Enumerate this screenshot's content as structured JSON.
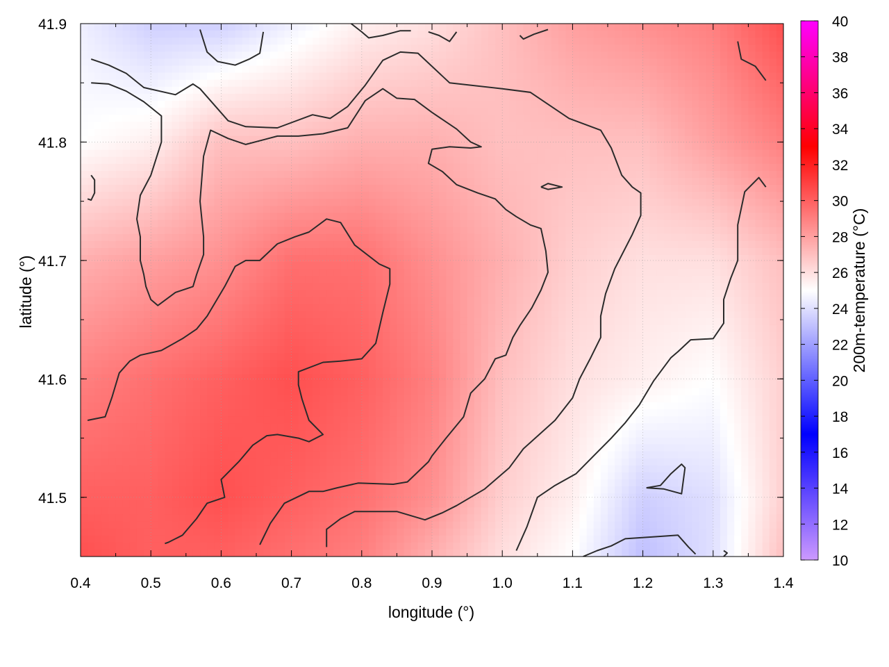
{
  "chart_data": {
    "type": "heatmap",
    "title": "",
    "xlabel": "longitude (°)",
    "ylabel": "latitude (°)",
    "colorbar_label": "200m-temperature (°C)",
    "xlim": [
      0.4,
      1.4
    ],
    "ylim": [
      41.45,
      41.9
    ],
    "x_ticks": [
      0.4,
      0.5,
      0.6,
      0.7,
      0.8,
      0.9,
      1.0,
      1.1,
      1.2,
      1.3,
      1.4
    ],
    "x_tick_labels": [
      "0.4",
      "0.5",
      "0.6",
      "0.7",
      "0.8",
      "0.9",
      "1.0",
      "1.1",
      "1.2",
      "1.3",
      "1.4"
    ],
    "y_ticks": [
      41.5,
      41.6,
      41.7,
      41.8,
      41.9
    ],
    "y_tick_labels": [
      "41.5",
      "41.6",
      "41.7",
      "41.8",
      "41.9"
    ],
    "colorbar_range": [
      10,
      40
    ],
    "colorbar_ticks": [
      10,
      12,
      14,
      16,
      18,
      20,
      22,
      24,
      26,
      28,
      30,
      32,
      34,
      36,
      38,
      40
    ],
    "colorbar_tick_labels": [
      "10",
      "12",
      "14",
      "16",
      "18",
      "20",
      "22",
      "24",
      "26",
      "28",
      "30",
      "32",
      "34",
      "36",
      "38",
      "40"
    ],
    "colormap": [
      {
        "value": 10,
        "color": "#cc99ff"
      },
      {
        "value": 17,
        "color": "#0000ff"
      },
      {
        "value": 25,
        "color": "#ffffff"
      },
      {
        "value": 33,
        "color": "#ff0000"
      },
      {
        "value": 40,
        "color": "#ff00ff"
      }
    ],
    "grid": true,
    "field_samples": [
      [
        41.9,
        [
          24.5,
          23.5,
          23.5,
          24.5,
          25.5,
          26,
          27,
          28,
          28.5,
          29,
          30.5
        ]
      ],
      [
        41.8,
        [
          25,
          25.5,
          27,
          27,
          27.5,
          27.5,
          27,
          27,
          27,
          28,
          29
        ]
      ],
      [
        41.7,
        [
          27.5,
          28,
          28.5,
          29.5,
          29.5,
          28.5,
          27.5,
          26.5,
          26,
          26,
          27
        ]
      ],
      [
        41.6,
        [
          29,
          29.5,
          30,
          30.5,
          30,
          29,
          27,
          26,
          25.5,
          25,
          26.5
        ]
      ],
      [
        41.5,
        [
          30,
          30,
          30.5,
          30,
          29.5,
          28.5,
          26.5,
          25.5,
          23.5,
          24,
          26.5
        ]
      ],
      [
        41.45,
        [
          30.5,
          30,
          30,
          29.5,
          29,
          27.5,
          26,
          25,
          23,
          24,
          27
        ]
      ]
    ],
    "contour_lines": [
      [
        [
          0.415,
          41.87
        ],
        [
          0.44,
          41.865
        ],
        [
          0.465,
          41.858
        ],
        [
          0.49,
          41.846
        ],
        [
          0.535,
          41.84
        ],
        [
          0.56,
          41.849
        ],
        [
          0.57,
          41.845
        ],
        [
          0.61,
          41.818
        ],
        [
          0.635,
          41.813
        ],
        [
          0.68,
          41.812
        ],
        [
          0.73,
          41.823
        ],
        [
          0.755,
          41.82
        ],
        [
          0.78,
          41.83
        ],
        [
          0.805,
          41.848
        ],
        [
          0.83,
          41.869
        ],
        [
          0.855,
          41.876
        ],
        [
          0.88,
          41.875
        ],
        [
          0.925,
          41.85
        ],
        [
          1.0,
          41.845
        ],
        [
          1.04,
          41.842
        ],
        [
          1.095,
          41.82
        ],
        [
          1.14,
          41.81
        ],
        [
          1.155,
          41.795
        ],
        [
          1.17,
          41.772
        ],
        [
          1.185,
          41.762
        ],
        [
          1.197,
          41.757
        ],
        [
          1.197,
          41.738
        ],
        [
          1.185,
          41.722
        ],
        [
          1.16,
          41.693
        ],
        [
          1.147,
          41.672
        ],
        [
          1.14,
          41.653
        ],
        [
          1.14,
          41.635
        ],
        [
          1.125,
          41.617
        ],
        [
          1.11,
          41.6
        ],
        [
          1.1,
          41.584
        ],
        [
          1.075,
          41.565
        ],
        [
          1.03,
          41.541
        ],
        [
          1.01,
          41.525
        ],
        [
          0.975,
          41.507
        ],
        [
          0.935,
          41.493
        ],
        [
          0.915,
          41.487
        ],
        [
          0.89,
          41.481
        ],
        [
          0.85,
          41.488
        ],
        [
          0.79,
          41.488
        ],
        [
          0.77,
          41.482
        ],
        [
          0.75,
          41.473
        ],
        [
          0.75,
          41.458
        ]
      ],
      [
        [
          0.415,
          41.85
        ],
        [
          0.44,
          41.849
        ],
        [
          0.465,
          41.843
        ],
        [
          0.49,
          41.834
        ],
        [
          0.515,
          41.822
        ],
        [
          0.515,
          41.8
        ],
        [
          0.5,
          41.772
        ],
        [
          0.485,
          41.755
        ],
        [
          0.48,
          41.735
        ],
        [
          0.485,
          41.72
        ],
        [
          0.485,
          41.7
        ],
        [
          0.49,
          41.688
        ],
        [
          0.493,
          41.678
        ],
        [
          0.5,
          41.667
        ],
        [
          0.51,
          41.662
        ],
        [
          0.535,
          41.673
        ],
        [
          0.56,
          41.678
        ],
        [
          0.565,
          41.688
        ],
        [
          0.575,
          41.705
        ],
        [
          0.575,
          41.72
        ],
        [
          0.57,
          41.75
        ],
        [
          0.575,
          41.788
        ],
        [
          0.585,
          41.81
        ],
        [
          0.61,
          41.803
        ],
        [
          0.635,
          41.798
        ],
        [
          0.68,
          41.805
        ],
        [
          0.71,
          41.805
        ],
        [
          0.745,
          41.807
        ],
        [
          0.78,
          41.812
        ],
        [
          0.805,
          41.835
        ],
        [
          0.83,
          41.845
        ],
        [
          0.85,
          41.837
        ],
        [
          0.875,
          41.836
        ],
        [
          0.9,
          41.825
        ],
        [
          0.935,
          41.811
        ],
        [
          0.955,
          41.8
        ],
        [
          0.97,
          41.796
        ],
        [
          0.955,
          41.795
        ],
        [
          0.925,
          41.796
        ],
        [
          0.9,
          41.794
        ],
        [
          0.895,
          41.782
        ],
        [
          0.915,
          41.775
        ],
        [
          0.935,
          41.764
        ],
        [
          0.965,
          41.757
        ],
        [
          0.99,
          41.752
        ],
        [
          1.005,
          41.743
        ],
        [
          1.02,
          41.737
        ],
        [
          1.04,
          41.73
        ],
        [
          1.055,
          41.727
        ],
        [
          1.062,
          41.708
        ],
        [
          1.065,
          41.69
        ],
        [
          1.055,
          41.675
        ],
        [
          1.042,
          41.66
        ],
        [
          1.025,
          41.645
        ],
        [
          1.015,
          41.635
        ],
        [
          1.005,
          41.62
        ],
        [
          0.99,
          41.617
        ],
        [
          0.975,
          41.6
        ],
        [
          0.955,
          41.588
        ],
        [
          0.945,
          41.568
        ],
        [
          0.92,
          41.55
        ],
        [
          0.9,
          41.535
        ],
        [
          0.895,
          41.53
        ],
        [
          0.865,
          41.513
        ],
        [
          0.845,
          41.511
        ],
        [
          0.795,
          41.512
        ],
        [
          0.765,
          41.508
        ],
        [
          0.745,
          41.505
        ],
        [
          0.725,
          41.505
        ],
        [
          0.69,
          41.495
        ],
        [
          0.67,
          41.478
        ],
        [
          0.655,
          41.46
        ]
      ],
      [
        [
          0.41,
          41.565
        ],
        [
          0.435,
          41.568
        ],
        [
          0.445,
          41.585
        ],
        [
          0.455,
          41.605
        ],
        [
          0.47,
          41.615
        ],
        [
          0.485,
          41.62
        ],
        [
          0.515,
          41.624
        ],
        [
          0.545,
          41.634
        ],
        [
          0.565,
          41.642
        ],
        [
          0.58,
          41.653
        ],
        [
          0.605,
          41.678
        ],
        [
          0.62,
          41.695
        ],
        [
          0.635,
          41.7
        ],
        [
          0.655,
          41.7
        ],
        [
          0.68,
          41.714
        ],
        [
          0.705,
          41.72
        ],
        [
          0.725,
          41.724
        ],
        [
          0.75,
          41.735
        ],
        [
          0.77,
          41.732
        ],
        [
          0.79,
          41.713
        ],
        [
          0.825,
          41.697
        ],
        [
          0.84,
          41.693
        ],
        [
          0.84,
          41.68
        ],
        [
          0.83,
          41.656
        ],
        [
          0.82,
          41.63
        ],
        [
          0.8,
          41.617
        ],
        [
          0.77,
          41.615
        ],
        [
          0.745,
          41.614
        ],
        [
          0.71,
          41.606
        ],
        [
          0.71,
          41.595
        ],
        [
          0.715,
          41.583
        ],
        [
          0.725,
          41.565
        ],
        [
          0.745,
          41.553
        ],
        [
          0.725,
          41.547
        ],
        [
          0.71,
          41.55
        ],
        [
          0.68,
          41.553
        ],
        [
          0.665,
          41.552
        ],
        [
          0.645,
          41.544
        ],
        [
          0.625,
          41.53
        ],
        [
          0.6,
          41.515
        ],
        [
          0.605,
          41.5
        ],
        [
          0.58,
          41.495
        ],
        [
          0.565,
          41.482
        ],
        [
          0.545,
          41.468
        ],
        [
          0.525,
          41.462
        ],
        [
          0.52,
          41.461
        ]
      ],
      [
        [
          0.41,
          41.752
        ],
        [
          0.415,
          41.751
        ],
        [
          0.42,
          41.757
        ],
        [
          0.42,
          41.768
        ],
        [
          0.415,
          41.772
        ]
      ],
      [
        [
          1.055,
          41.762
        ],
        [
          1.065,
          41.765
        ],
        [
          1.085,
          41.762
        ],
        [
          1.065,
          41.76
        ],
        [
          1.055,
          41.762
        ]
      ],
      [
        [
          1.02,
          41.455
        ],
        [
          1.035,
          41.475
        ],
        [
          1.05,
          41.5
        ],
        [
          1.075,
          41.51
        ],
        [
          1.105,
          41.52
        ],
        [
          1.13,
          41.535
        ],
        [
          1.155,
          41.55
        ],
        [
          1.175,
          41.563
        ],
        [
          1.195,
          41.578
        ],
        [
          1.215,
          41.598
        ],
        [
          1.24,
          41.618
        ],
        [
          1.25,
          41.623
        ],
        [
          1.268,
          41.633
        ],
        [
          1.3,
          41.634
        ],
        [
          1.315,
          41.647
        ],
        [
          1.315,
          41.667
        ],
        [
          1.325,
          41.685
        ],
        [
          1.335,
          41.7
        ],
        [
          1.335,
          41.715
        ],
        [
          1.335,
          41.73
        ],
        [
          1.345,
          41.758
        ],
        [
          1.365,
          41.77
        ],
        [
          1.375,
          41.762
        ]
      ],
      [
        [
          1.205,
          41.508
        ],
        [
          1.23,
          41.507
        ],
        [
          1.255,
          41.503
        ],
        [
          1.26,
          41.525
        ],
        [
          1.255,
          41.528
        ],
        [
          1.24,
          41.52
        ],
        [
          1.225,
          41.51
        ],
        [
          1.205,
          41.508
        ]
      ],
      [
        [
          1.115,
          41.45
        ],
        [
          1.135,
          41.455
        ],
        [
          1.155,
          41.459
        ],
        [
          1.175,
          41.465
        ],
        [
          1.225,
          41.467
        ],
        [
          1.25,
          41.468
        ],
        [
          1.265,
          41.458
        ],
        [
          1.275,
          41.452
        ]
      ],
      [
        [
          0.57,
          41.895
        ],
        [
          0.58,
          41.876
        ],
        [
          0.595,
          41.868
        ],
        [
          0.62,
          41.865
        ],
        [
          0.64,
          41.87
        ],
        [
          0.655,
          41.875
        ],
        [
          0.66,
          41.893
        ]
      ],
      [
        [
          0.785,
          41.9
        ],
        [
          0.8,
          41.893
        ],
        [
          0.81,
          41.888
        ],
        [
          0.83,
          41.89
        ],
        [
          0.855,
          41.894
        ],
        [
          0.87,
          41.894
        ]
      ],
      [
        [
          0.895,
          41.893
        ],
        [
          0.91,
          41.89
        ],
        [
          0.925,
          41.885
        ],
        [
          0.935,
          41.893
        ]
      ],
      [
        [
          1.025,
          41.89
        ],
        [
          1.03,
          41.887
        ],
        [
          1.045,
          41.891
        ],
        [
          1.065,
          41.895
        ]
      ],
      [
        [
          1.335,
          41.885
        ],
        [
          1.34,
          41.87
        ],
        [
          1.36,
          41.864
        ],
        [
          1.375,
          41.852
        ]
      ],
      [
        [
          1.315,
          41.455
        ],
        [
          1.32,
          41.453
        ],
        [
          1.315,
          41.45
        ]
      ]
    ]
  }
}
